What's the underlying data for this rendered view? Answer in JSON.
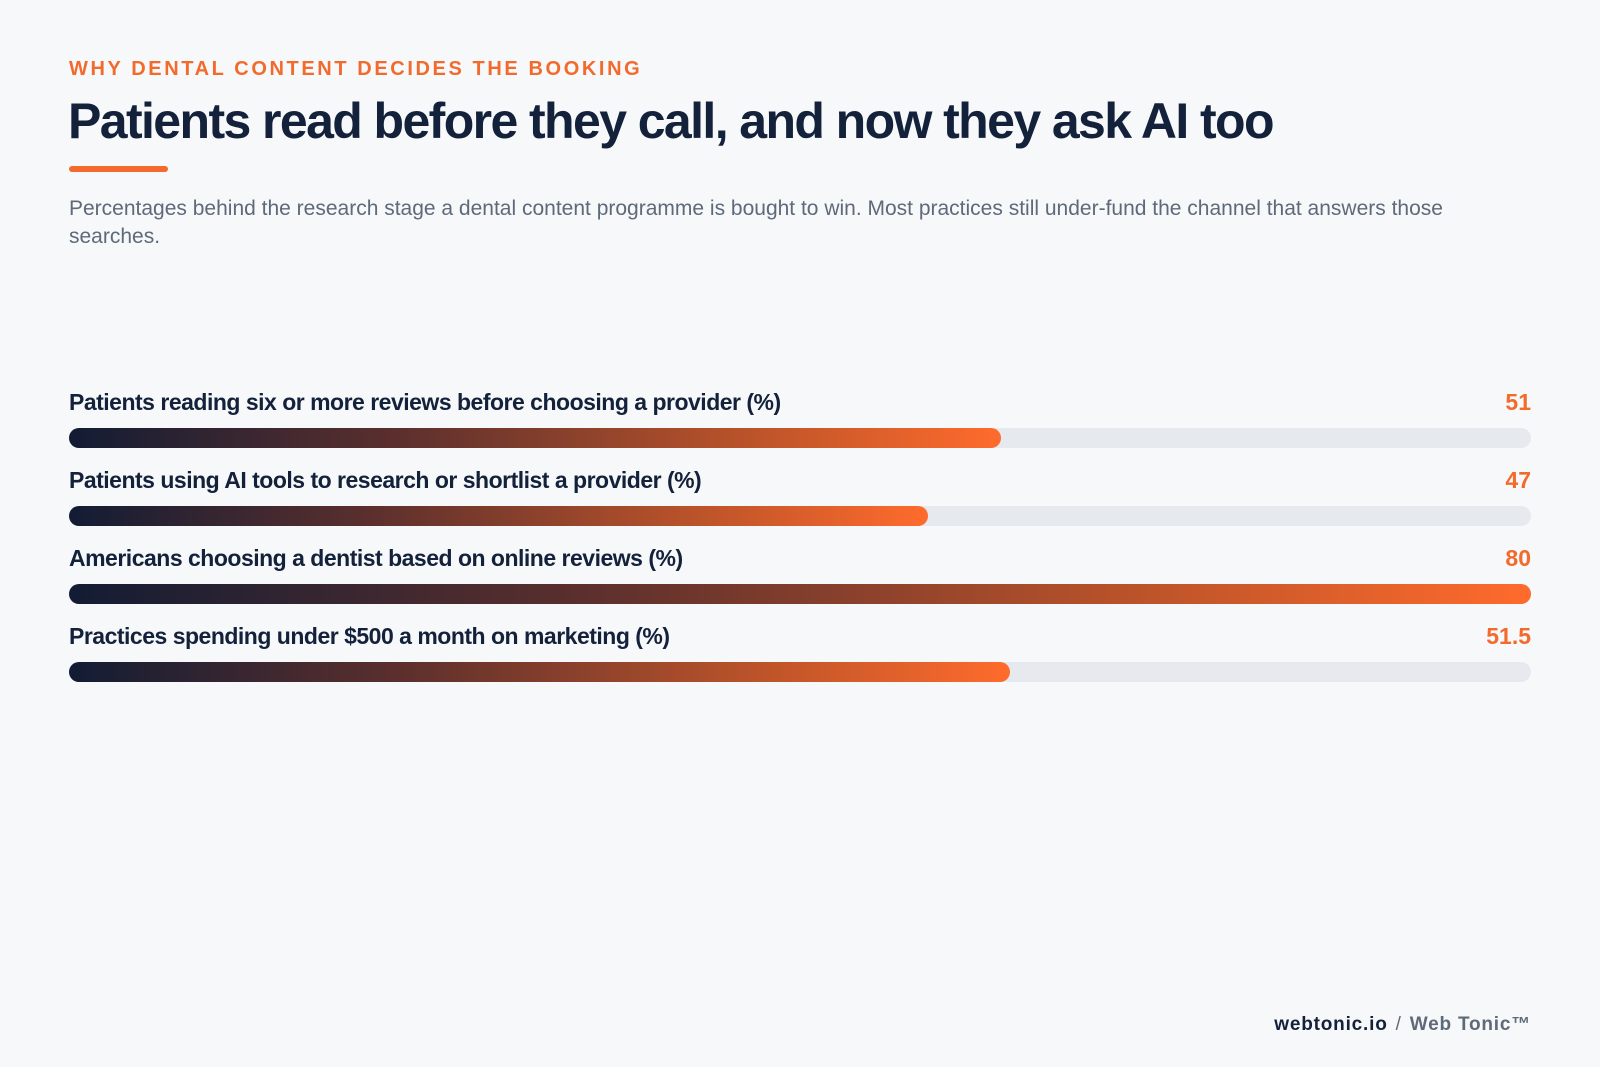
{
  "header": {
    "eyebrow": "WHY DENTAL CONTENT DECIDES THE BOOKING",
    "title": "Patients read before they call, and now they ask AI too",
    "subtitle": "Percentages behind the research stage a dental content programme is bought to win. Most practices still under-fund the channel that answers those searches."
  },
  "chart_data": {
    "type": "bar",
    "orientation": "horizontal",
    "categories": [
      "Patients reading six or more reviews before choosing a provider (%)",
      "Patients using AI tools to research or shortlist a provider (%)",
      "Americans choosing a dentist based on online reviews (%)",
      "Practices spending under $500 a month on marketing (%)"
    ],
    "values": [
      51,
      47,
      80,
      51.5
    ],
    "value_labels": [
      "51",
      "47",
      "80",
      "51.5"
    ],
    "xlim": [
      0,
      80
    ],
    "grid": false,
    "legend": "none",
    "colors": {
      "gradient_start": "#121c34",
      "gradient_end": "#ff6b2c",
      "track": "#e6e9ee",
      "value_text": "#f26b2d"
    }
  },
  "footer": {
    "domain": "webtonic.io",
    "separator": "/",
    "brand": "Web Tonic™"
  }
}
